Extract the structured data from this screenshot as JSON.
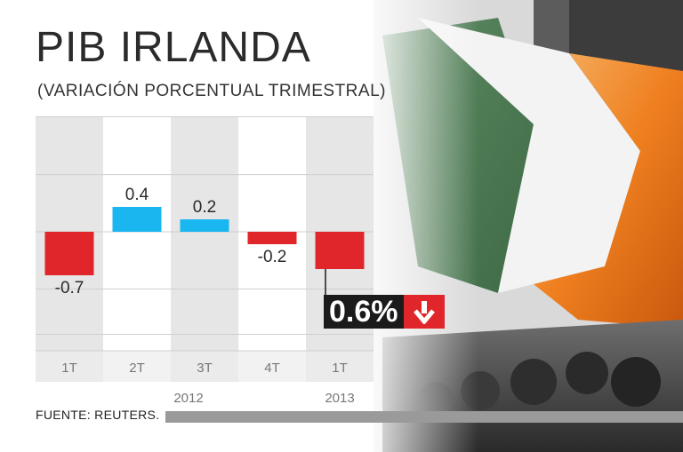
{
  "title": "PIB IRLANDA",
  "subtitle": "(VARIACIÓN PORCENTUAL TRIMESTRAL)",
  "source": "FUENTE: REUTERS.",
  "callout": {
    "value": "0.6%",
    "icon": "down-arrow-icon"
  },
  "colors": {
    "negative": "#e0262b",
    "positive": "#19b6f0",
    "band_gray": "#e6e6e6",
    "band_white": "#ffffff"
  },
  "chart_data": {
    "type": "bar",
    "title": "PIB IRLANDA",
    "subtitle": "(VARIACIÓN PORCENTUAL TRIMESTRAL)",
    "categories": [
      "1T",
      "2T",
      "3T",
      "4T",
      "1T"
    ],
    "values": [
      -0.7,
      0.4,
      0.2,
      -0.2,
      -0.6
    ],
    "data_labels": [
      "-0.7",
      "0.4",
      "0.2",
      "-0.2",
      ""
    ],
    "year_labels": [
      "2012",
      "2013"
    ],
    "ylim": [
      -1.5,
      1.7
    ],
    "grid": true
  }
}
